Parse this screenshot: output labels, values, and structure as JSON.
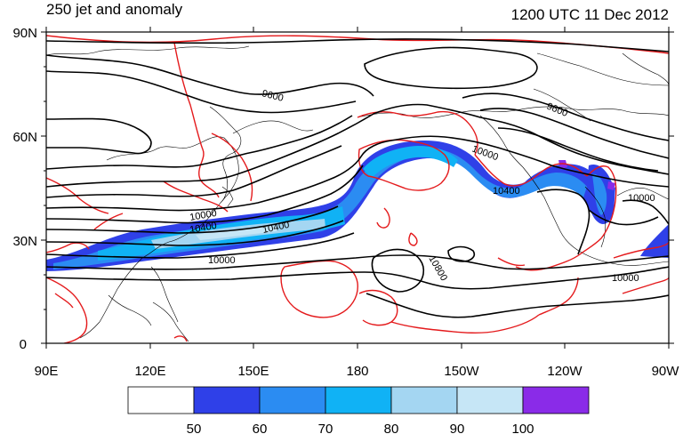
{
  "title_left": "250 jet and anomaly",
  "title_right": "1200 UTC 11 Dec 2012",
  "lat_labels": [
    "90N",
    "60N",
    "30N",
    "0"
  ],
  "lon_labels": [
    "90E",
    "120E",
    "150E",
    "180",
    "150W",
    "120W",
    "90W"
  ],
  "contour_labels": [
    "9600",
    "9600",
    "10000",
    "10000",
    "10400",
    "10400",
    "10400",
    "10000",
    "10000",
    "10800",
    "10000"
  ],
  "colorbar": {
    "labels": [
      "50",
      "60",
      "70",
      "80",
      "90",
      "100"
    ],
    "colors": [
      "#ffffff",
      "#2f40e8",
      "#2b8cf2",
      "#10b2f5",
      "#a4d6f2",
      "#c6e6f6",
      "#8a2be8"
    ]
  },
  "colors": {
    "anomaly_contour": "#e41a1c",
    "height_contour": "#000000",
    "coast": "#000000"
  }
}
